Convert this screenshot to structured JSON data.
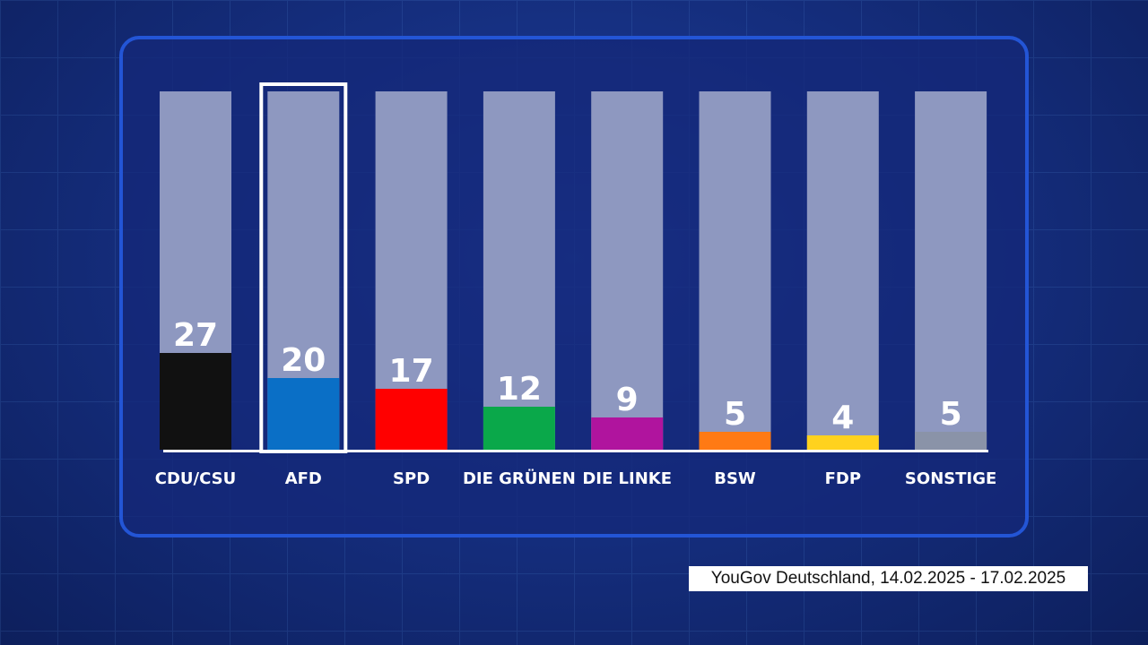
{
  "chart_data": {
    "type": "bar",
    "categories": [
      "CDU/CSU",
      "AFD",
      "SPD",
      "DIE GRÜNEN",
      "DIE LINKE",
      "BSW",
      "FDP",
      "SONSTIGE"
    ],
    "values": [
      27,
      20,
      17,
      12,
      9,
      5,
      4,
      5
    ],
    "labels": [
      "27",
      "20",
      "17",
      "12",
      "9",
      "5",
      "4",
      "5"
    ],
    "colors": [
      "#111111",
      "#0a6fc6",
      "#ff0000",
      "#0aa84a",
      "#b0149e",
      "#ff7a14",
      "#ffd21e",
      "#8a93a8"
    ],
    "highlighted": "AFD",
    "ylim": [
      0,
      100
    ],
    "grid": false
  },
  "source": "YouGov Deutschland, 14.02.2025 - 17.02.2025"
}
